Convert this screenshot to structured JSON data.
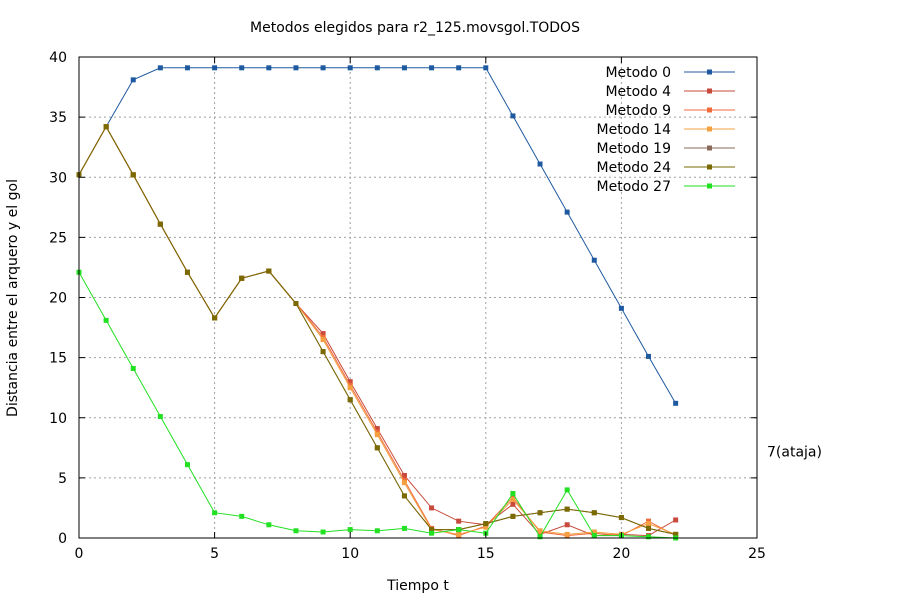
{
  "chart_data": {
    "type": "line",
    "title": "Metodos elegidos para r2_125.movsgol.TODOS",
    "xlabel": "Tiempo t",
    "ylabel": "Distancia entre el arquero y el gol",
    "xlim": [
      0,
      25
    ],
    "ylim": [
      0,
      40
    ],
    "xticks": [
      0,
      5,
      10,
      15,
      20,
      25
    ],
    "yticks": [
      0,
      5,
      10,
      15,
      20,
      25,
      30,
      35,
      40
    ],
    "grid": true,
    "legend_position": "top-right",
    "annotation": {
      "text": "7(ataja)",
      "y": 7.2
    },
    "series": [
      {
        "name": "Metodo 0",
        "color": "#1f5aa0",
        "x": [
          1,
          2,
          3,
          4,
          5,
          6,
          7,
          8,
          9,
          10,
          11,
          12,
          13,
          14,
          15,
          16,
          17,
          18,
          19,
          20,
          21,
          22
        ],
        "y": [
          34.2,
          38.1,
          39.1,
          39.1,
          39.1,
          39.1,
          39.1,
          39.1,
          39.1,
          39.1,
          39.1,
          39.1,
          39.1,
          39.1,
          39.1,
          35.1,
          31.1,
          27.1,
          23.1,
          19.1,
          15.1,
          11.2
        ]
      },
      {
        "name": "Metodo 4",
        "color": "#c84a3c",
        "x": [
          0,
          1,
          2,
          3,
          4,
          5,
          6,
          7,
          8,
          9,
          10,
          11,
          12,
          13,
          14,
          15,
          16,
          17,
          18,
          19,
          20,
          21,
          22
        ],
        "y": [
          30.2,
          34.2,
          30.2,
          26.1,
          22.1,
          18.3,
          21.6,
          22.2,
          19.5,
          17.0,
          13.0,
          9.1,
          5.2,
          2.5,
          1.4,
          1.1,
          2.8,
          0.3,
          1.1,
          0.2,
          0.3,
          0.2,
          1.5
        ]
      },
      {
        "name": "Metodo 9",
        "color": "#f06a3c",
        "x": [
          0,
          1,
          2,
          3,
          4,
          5,
          6,
          7,
          8,
          9,
          10,
          11,
          12,
          13,
          14,
          15,
          16,
          17,
          18,
          19,
          20,
          21,
          22
        ],
        "y": [
          30.2,
          34.2,
          30.2,
          26.1,
          22.1,
          18.3,
          21.6,
          22.2,
          19.5,
          16.7,
          12.7,
          8.8,
          4.8,
          0.8,
          0.2,
          1.0,
          3.4,
          0.5,
          0.2,
          0.4,
          0.2,
          1.4,
          0.2
        ]
      },
      {
        "name": "Metodo 14",
        "color": "#f4a040",
        "x": [
          0,
          1,
          2,
          3,
          4,
          5,
          6,
          7,
          8,
          9,
          10,
          11,
          12,
          13,
          14,
          15,
          16,
          17,
          18,
          19,
          20,
          21,
          22
        ],
        "y": [
          30.2,
          34.2,
          30.2,
          26.1,
          22.1,
          18.3,
          21.6,
          22.2,
          19.5,
          16.5,
          12.5,
          8.6,
          4.6,
          0.7,
          0.3,
          0.9,
          3.2,
          0.6,
          0.3,
          0.5,
          0.3,
          1.2,
          0.3
        ]
      },
      {
        "name": "Metodo 19",
        "color": "#8b6a5a",
        "x": [
          0,
          1,
          2,
          3,
          4,
          5,
          6,
          7,
          8,
          9,
          10,
          11,
          12,
          13,
          14,
          15,
          16,
          17,
          18,
          19,
          20,
          21,
          22
        ],
        "y": [
          30.2,
          34.2,
          30.2,
          26.1,
          22.1,
          18.3,
          21.6,
          22.2,
          19.5,
          15.5,
          11.5,
          7.5,
          3.5,
          0.7,
          0.7,
          1.2,
          1.8,
          2.1,
          2.4,
          2.1,
          1.7,
          0.8,
          0.3
        ]
      },
      {
        "name": "Metodo 24",
        "color": "#7a6a00",
        "x": [
          0,
          1,
          2,
          3,
          4,
          5,
          6,
          7,
          8,
          9,
          10,
          11,
          12,
          13,
          14,
          15,
          16,
          17,
          18,
          19,
          20,
          21,
          22
        ],
        "y": [
          30.2,
          34.2,
          30.2,
          26.1,
          22.1,
          18.3,
          21.6,
          22.2,
          19.5,
          15.5,
          11.5,
          7.5,
          3.5,
          0.7,
          0.7,
          1.2,
          1.8,
          2.1,
          2.4,
          2.1,
          1.7,
          0.8,
          0.3
        ]
      },
      {
        "name": "Metodo 27",
        "color": "#22e022",
        "x": [
          0,
          1,
          2,
          3,
          4,
          5,
          6,
          7,
          8,
          9,
          10,
          11,
          12,
          13,
          14,
          15,
          16,
          17,
          18,
          19,
          20,
          21,
          22
        ],
        "y": [
          22.1,
          18.1,
          14.1,
          10.1,
          6.1,
          2.1,
          1.8,
          1.1,
          0.6,
          0.5,
          0.7,
          0.6,
          0.8,
          0.4,
          0.7,
          0.4,
          3.7,
          0.1,
          4.0,
          0.2,
          0.2,
          0.1,
          0.0
        ]
      }
    ]
  }
}
